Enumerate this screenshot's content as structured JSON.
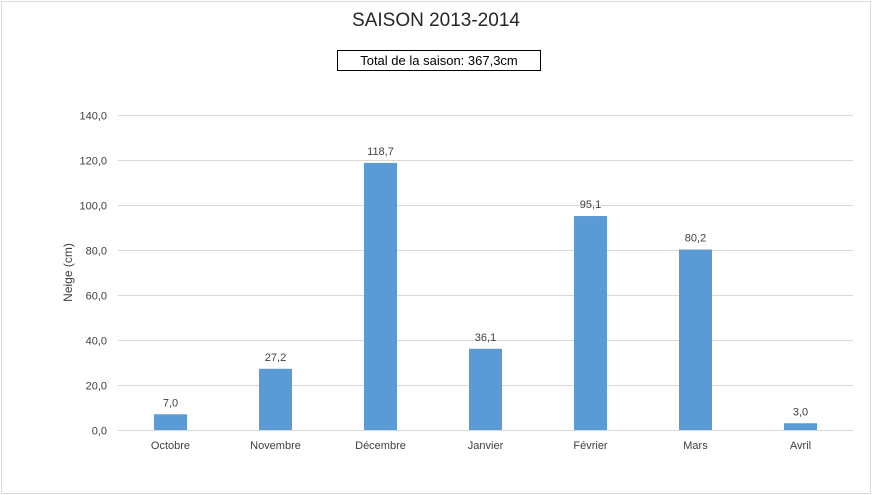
{
  "chart_data": {
    "type": "bar",
    "title": "SAISON 2013-2014",
    "annotation": "Total de la saison: 367,3cm",
    "ylabel": "Neige (cm)",
    "xlabel": "",
    "categories": [
      "Octobre",
      "Novembre",
      "Décembre",
      "Janvier",
      "Février",
      "Mars",
      "Avril"
    ],
    "values": [
      7.0,
      27.2,
      118.7,
      36.1,
      95.1,
      80.2,
      3.0
    ],
    "data_labels": [
      "7,0",
      "27,2",
      "118,7",
      "36,1",
      "95,1",
      "80,2",
      "3,0"
    ],
    "ylim": [
      0,
      140
    ],
    "yticks": [
      0,
      20,
      40,
      60,
      80,
      100,
      120,
      140
    ],
    "ytick_labels": [
      "0,0",
      "20,0",
      "40,0",
      "60,0",
      "80,0",
      "100,0",
      "120,0",
      "140,0"
    ],
    "grid": true,
    "bar_color": "#5b9bd5"
  }
}
